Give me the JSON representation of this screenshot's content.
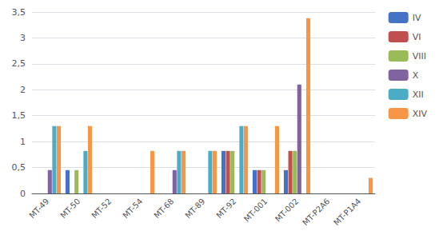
{
  "chart_data": {
    "type": "bar",
    "categories": [
      "MT-49",
      "MT-50",
      "MT-52",
      "MT-54",
      "MT-68",
      "MT-89",
      "MT-92",
      "MT-001",
      "MT-002",
      "MT-P2A6",
      "MT-P1A4"
    ],
    "series": [
      {
        "name": "IV",
        "color": "#4472C4",
        "values": [
          0.0,
          0.45,
          0.0,
          0.0,
          0.0,
          0.0,
          0.82,
          0.45,
          0.45,
          0.0,
          0.0
        ]
      },
      {
        "name": "VI",
        "color": "#C0504D",
        "values": [
          0.0,
          0.0,
          0.0,
          0.0,
          0.0,
          0.0,
          0.82,
          0.45,
          0.82,
          0.0,
          0.0
        ]
      },
      {
        "name": "VIII",
        "color": "#9BBB59",
        "values": [
          0.0,
          0.45,
          0.0,
          0.0,
          0.0,
          0.0,
          0.82,
          0.45,
          0.82,
          0.0,
          0.0
        ]
      },
      {
        "name": "X",
        "color": "#8064A2",
        "values": [
          0.45,
          0.0,
          0.0,
          0.0,
          0.45,
          0.0,
          0.0,
          0.0,
          2.1,
          0.0,
          0.0
        ]
      },
      {
        "name": "XII",
        "color": "#4BACC6",
        "values": [
          1.3,
          0.82,
          0.0,
          0.0,
          0.82,
          0.82,
          1.3,
          0.0,
          0.0,
          0.0,
          0.0
        ]
      },
      {
        "name": "XIV",
        "color": "#F79646",
        "values": [
          1.3,
          1.3,
          0.0,
          0.82,
          0.82,
          0.82,
          1.3,
          1.3,
          3.38,
          0.0,
          0.3
        ]
      }
    ],
    "ylim": [
      0,
      3.5
    ],
    "yticks": [
      0,
      {
        "value": 0.5,
        "label": "0,5"
      },
      1,
      {
        "value": 1.5,
        "label": "1,5"
      },
      2,
      {
        "value": 2.5,
        "label": "2,5"
      },
      3,
      {
        "value": 3.5,
        "label": "3,5"
      }
    ],
    "grid": true,
    "legend": "right"
  }
}
